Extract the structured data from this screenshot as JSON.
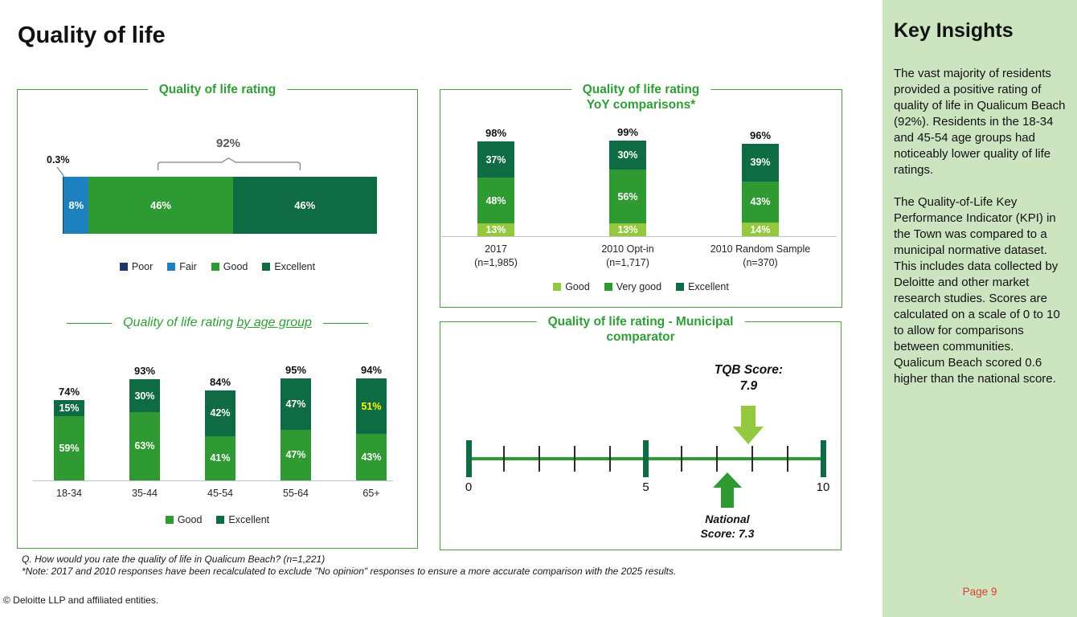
{
  "page": {
    "title": "Quality of life",
    "copyright": "© Deloitte LLP and affiliated entities.",
    "page_label": "Page 9"
  },
  "footnotes": {
    "question": "Q. How would you rate the quality of life in Qualicum Beach? (n=1,221)",
    "note": "*Note: 2017 and 2010 responses have been recalculated to exclude \"No opinion\" responses to ensure a more accurate comparison with the 2025 results."
  },
  "key_insights": {
    "title": "Key Insights",
    "paragraphs": [
      "The vast majority of residents provided a positive rating of quality of life in Qualicum Beach (92%). Residents in the 18-34 and 45-54 age groups had noticeably lower quality of life ratings.",
      "The Quality-of-Life Key Performance Indicator (KPI) in the Town was compared to a municipal normative dataset. This includes data collected by Deloitte and other market research studies. Scores are calculated on a scale of 0 to 10 to allow for comparisons between communities. Qualicum Beach scored 0.6 higher than the national score."
    ]
  },
  "colors": {
    "title_green": "#2f9e36",
    "border_green": "#4d9f41",
    "poor_navy": "#1d3865",
    "fair_blue": "#1d81bd",
    "good_green": "#2f9a32",
    "excellent_green": "#0e6b43",
    "light_green": "#94c83e",
    "sidebar_bg": "#cde4c1",
    "page_red": "#e03e2d",
    "highlight_yellow": "#ffff00",
    "bracket_gray": "#7f7f7f"
  },
  "chart_data": [
    {
      "id": "overall",
      "type": "bar",
      "orientation": "horizontal-stacked",
      "title": "Quality of life rating",
      "categories": [
        "Overall"
      ],
      "series": [
        {
          "name": "Poor",
          "value": 0.3,
          "label": "0.3%",
          "color": "#1d3865",
          "label_placement": "outside"
        },
        {
          "name": "Fair",
          "value": 8,
          "label": "8%",
          "color": "#1d81bd"
        },
        {
          "name": "Good",
          "value": 46,
          "label": "46%",
          "color": "#2f9a32"
        },
        {
          "name": "Excellent",
          "value": 46,
          "label": "46%",
          "color": "#0e6b43"
        }
      ],
      "annotation": {
        "text": "92%",
        "covers": "Good + Excellent"
      },
      "legend": [
        "Poor",
        "Fair",
        "Good",
        "Excellent"
      ]
    },
    {
      "id": "by_age",
      "type": "bar",
      "orientation": "vertical-stacked",
      "title": "Quality of life rating by age group",
      "title_plain": "Quality of life rating",
      "title_underlined": "by age group",
      "categories": [
        "18-34",
        "35-44",
        "45-54",
        "55-64",
        "65+"
      ],
      "series": [
        {
          "name": "Good",
          "color": "#2f9a32",
          "values": [
            59,
            63,
            41,
            47,
            43
          ]
        },
        {
          "name": "Excellent",
          "color": "#0e6b43",
          "values": [
            15,
            30,
            42,
            47,
            51
          ],
          "label_colors": {
            "4": "#ffff00"
          }
        }
      ],
      "totals": [
        "74%",
        "93%",
        "84%",
        "95%",
        "94%"
      ],
      "ylim": [
        0,
        100
      ],
      "legend": [
        "Good",
        "Excellent"
      ]
    },
    {
      "id": "yoy",
      "type": "bar",
      "orientation": "vertical-stacked",
      "title": "Quality of life rating YoY comparisons*",
      "title_lines": [
        "Quality of life rating",
        "YoY comparisons*"
      ],
      "categories": [
        [
          "2017",
          "(n=1,985)"
        ],
        [
          "2010 Opt-in",
          "(n=1,717)"
        ],
        [
          "2010 Random Sample",
          "(n=370)"
        ]
      ],
      "series": [
        {
          "name": "Good",
          "color": "#94c83e",
          "values": [
            13,
            13,
            14
          ]
        },
        {
          "name": "Very good",
          "color": "#2f9a32",
          "values": [
            48,
            56,
            43
          ]
        },
        {
          "name": "Excellent",
          "color": "#0e6b43",
          "values": [
            37,
            30,
            39
          ]
        }
      ],
      "totals": [
        "98%",
        "99%",
        "96%"
      ],
      "ylim": [
        0,
        100
      ],
      "legend": [
        "Good",
        "Very good",
        "Excellent"
      ]
    },
    {
      "id": "municipal",
      "type": "number-line",
      "title": "Quality of life rating - Municipal comparator",
      "title_lines": [
        "Quality of life rating - Municipal",
        "comparator"
      ],
      "axis": {
        "min": 0,
        "max": 10,
        "major_ticks": [
          0,
          5,
          10
        ],
        "minor_ticks": [
          1,
          2,
          3,
          4,
          6,
          7,
          8,
          9
        ],
        "labels": [
          "0",
          "5",
          "10"
        ]
      },
      "markers": [
        {
          "name": "TQB Score",
          "value": 7.9,
          "direction": "down",
          "color": "#94c83e",
          "label_lines": [
            "TQB Score:",
            "7.9"
          ]
        },
        {
          "name": "National Score",
          "value": 7.3,
          "direction": "up",
          "color": "#2f9a32",
          "label_lines": [
            "National",
            "Score: 7.3"
          ]
        }
      ]
    }
  ]
}
